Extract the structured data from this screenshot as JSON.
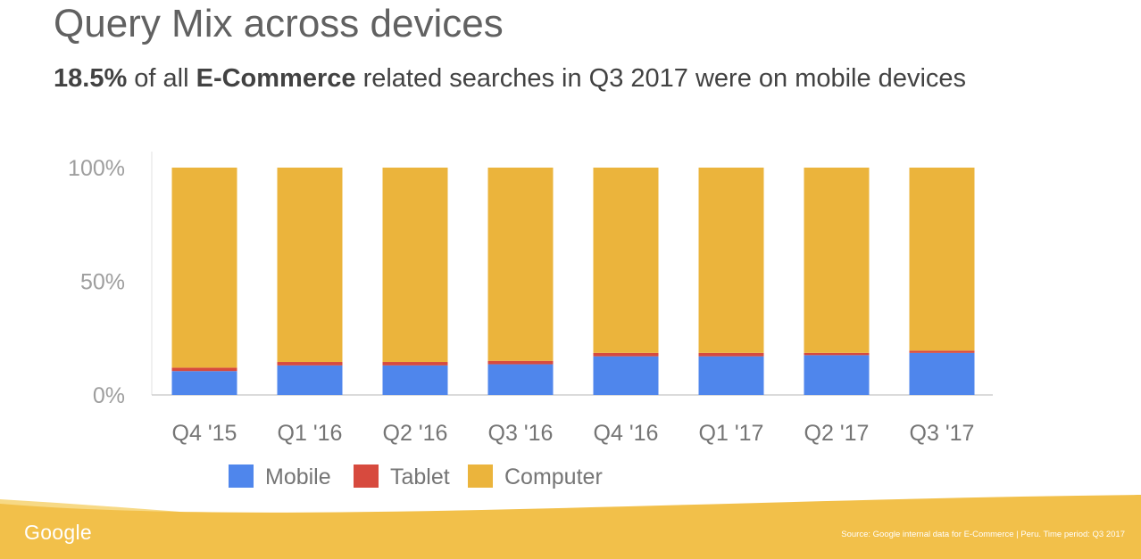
{
  "title": "Query Mix across devices",
  "subtitle": {
    "pct": "18.5%",
    "text1": " of all ",
    "category": "E-Commerce",
    "text2": " related searches in Q3 2017 were on mobile devices"
  },
  "footer": {
    "logo": "Google",
    "source": "Source:  Google internal data for E-Commerce | Peru. Time period: Q3 2017"
  },
  "colors": {
    "mobile": "#4f86ec",
    "tablet": "#d74a3e",
    "computer": "#ebb43c",
    "footer": "#f2c04a"
  },
  "chart_data": {
    "type": "bar",
    "stacked": true,
    "categories": [
      "Q4 '15",
      "Q1 '16",
      "Q2 '16",
      "Q3 '16",
      "Q4 '16",
      "Q1 '17",
      "Q2 '17",
      "Q3 '17"
    ],
    "series": [
      {
        "name": "Mobile",
        "values": [
          10.5,
          13.0,
          13.0,
          13.5,
          17.0,
          17.0,
          17.5,
          18.5
        ]
      },
      {
        "name": "Tablet",
        "values": [
          1.5,
          1.5,
          1.5,
          1.5,
          1.5,
          1.5,
          1.0,
          1.0
        ]
      },
      {
        "name": "Computer",
        "values": [
          88.0,
          85.5,
          85.5,
          85.0,
          81.5,
          81.5,
          81.5,
          80.5
        ]
      }
    ],
    "yticks": [
      "0%",
      "50%",
      "100%"
    ],
    "ylim": [
      0,
      100
    ],
    "legend_position": "bottom-left",
    "grid": false
  }
}
